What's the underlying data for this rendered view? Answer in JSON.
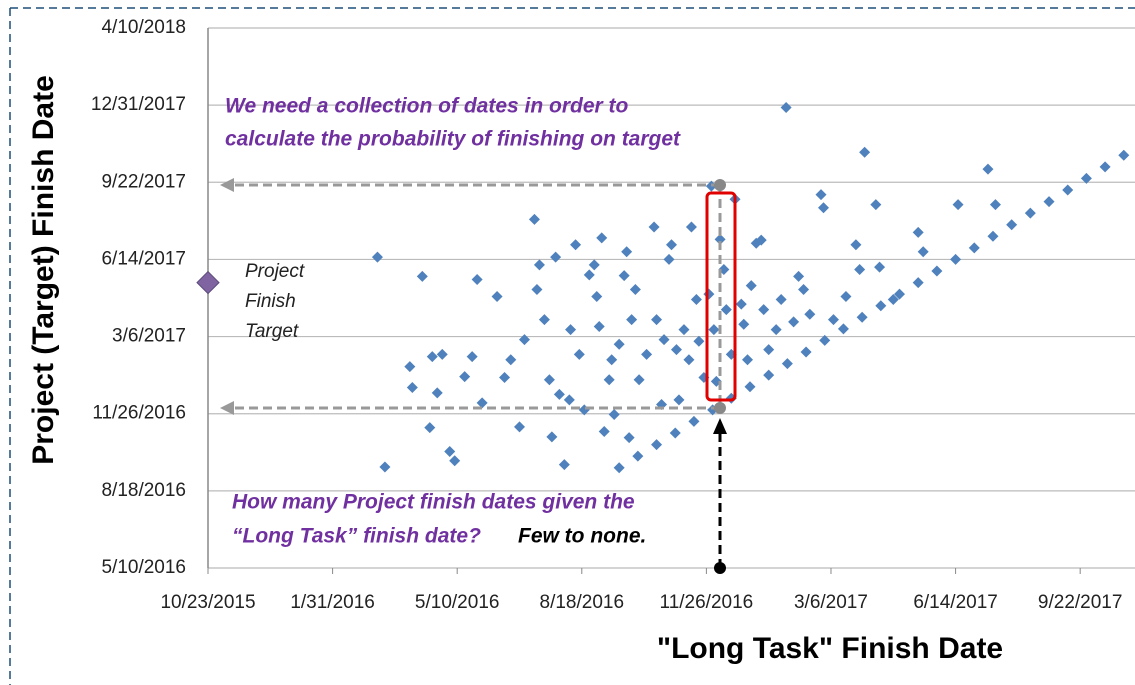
{
  "chart_data": {
    "type": "scatter",
    "x_label": "\"Long Task\" Finish Date",
    "y_label": "Project (Target) Finish Date",
    "annotations_top": [
      "We need a collection of dates in order to",
      "calculate the probability of finishing on target"
    ],
    "annotations_bottom": [
      "How many Project finish dates given the",
      "“Long Task” finish date?",
      "Few to none."
    ],
    "target_label": [
      "Project",
      "Finish",
      "Target"
    ],
    "target": {
      "x": 42300,
      "y": 42870,
      "color": "#8064a2"
    },
    "color": "#4f81bd",
    "grid": true,
    "xlim": [
      42300,
      43044
    ],
    "ylim": [
      42500,
      43200
    ],
    "xticks": [
      {
        "value": 42300,
        "label": "10/23/2015"
      },
      {
        "value": 42400,
        "label": "1/31/2016"
      },
      {
        "value": 42500,
        "label": "5/10/2016"
      },
      {
        "value": 42600,
        "label": "8/18/2016"
      },
      {
        "value": 42700,
        "label": "11/26/2016"
      },
      {
        "value": 42800,
        "label": "3/6/2017"
      },
      {
        "value": 42900,
        "label": "6/14/2017"
      },
      {
        "value": 43000,
        "label": "9/22/2017"
      }
    ],
    "yticks": [
      {
        "value": 42500,
        "label": "5/10/2016"
      },
      {
        "value": 42600,
        "label": "8/18/2016"
      },
      {
        "value": 42700,
        "label": "11/26/2016"
      },
      {
        "value": 42800,
        "label": "3/6/2017"
      },
      {
        "value": 42900,
        "label": "6/14/2017"
      },
      {
        "value": 43000,
        "label": "9/22/2017"
      },
      {
        "value": 43100,
        "label": "12/31/2017"
      },
      {
        "value": 43200,
        "label": "4/10/2018"
      }
    ],
    "x": [
      42436,
      42442,
      42462,
      42464,
      42472,
      42478,
      42480,
      42484,
      42488,
      42494,
      42498,
      42506,
      42512,
      42516,
      42520,
      42532,
      42538,
      42543,
      42550,
      42554,
      42562,
      42564,
      42566,
      42570,
      42574,
      42576,
      42579,
      42582,
      42586,
      42590,
      42591,
      42595,
      42598,
      42602,
      42606,
      42610,
      42612,
      42614,
      42616,
      42618,
      42622,
      42624,
      42626,
      42630,
      42634,
      42636,
      42638,
      42640,
      42643,
      42646,
      42652,
      42658,
      42660,
      42664,
      42666,
      42670,
      42672,
      42676,
      42678,
      42682,
      42686,
      42688,
      42692,
      42694,
      42698,
      42702,
      42704,
      42706,
      42708,
      42711,
      42714,
      42716,
      42720,
      42723,
      42728,
      42730,
      42733,
      42736,
      42740,
      42744,
      42746,
      42750,
      42756,
      42760,
      42764,
      42770,
      42774,
      42778,
      42783,
      42792,
      42794,
      42802,
      42812,
      42820,
      42823,
      42827,
      42836,
      42839,
      42850,
      42870,
      42874,
      42902,
      42926,
      42932,
      42630,
      42645,
      42660,
      42675,
      42690,
      42705,
      42720,
      42735,
      42750,
      42765,
      42780,
      42795,
      42810,
      42825,
      42840,
      42855,
      42870,
      42885,
      42900,
      42915,
      42930,
      42945,
      42960,
      42975,
      42990,
      43005,
      43020,
      43035
    ],
    "y": [
      42903,
      42631,
      42761,
      42734,
      42878,
      42682,
      42774,
      42727,
      42777,
      42651,
      42639,
      42748,
      42774,
      42874,
      42714,
      42852,
      42747,
      42770,
      42683,
      42796,
      42952,
      42861,
      42893,
      42822,
      42744,
      42670,
      42903,
      42725,
      42634,
      42718,
      42809,
      42919,
      42777,
      42705,
      42880,
      42893,
      42852,
      42813,
      42928,
      42677,
      42744,
      42770,
      42699,
      42790,
      42879,
      42910,
      42669,
      42822,
      42861,
      42744,
      42777,
      42942,
      42822,
      42712,
      42796,
      42900,
      42919,
      42783,
      42718,
      42809,
      42770,
      42942,
      42848,
      42794,
      42747,
      42855,
      42995,
      42809,
      42742,
      42926,
      42887,
      42835,
      42777,
      42978,
      42842,
      42816,
      42770,
      42866,
      42921,
      42925,
      42835,
      42783,
      42809,
      42848,
      43097,
      42819,
      42878,
      42861,
      42829,
      42984,
      42967,
      42822,
      42852,
      42919,
      42887,
      43039,
      42971,
      42890,
      42848,
      42935,
      42910,
      42971,
      43017,
      42971,
      42630,
      42645,
      42660,
      42675,
      42690,
      42705,
      42720,
      42735,
      42750,
      42765,
      42780,
      42795,
      42810,
      42825,
      42840,
      42855,
      42870,
      42885,
      42900,
      42915,
      42930,
      42945,
      42960,
      42975,
      42990,
      43005,
      43020,
      43035
    ]
  }
}
